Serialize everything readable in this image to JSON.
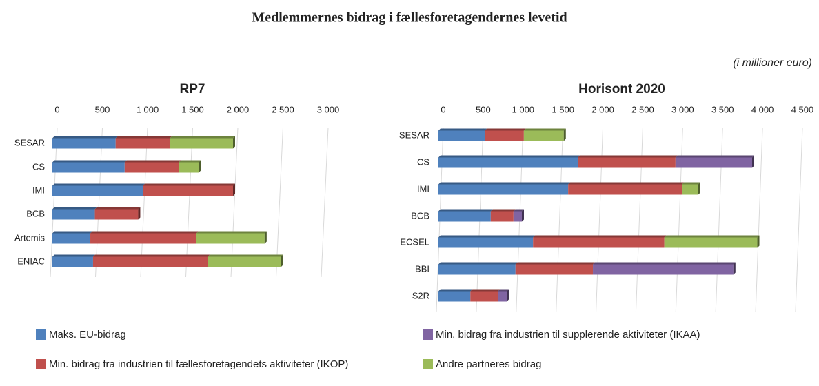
{
  "title": "Medlemmernes bidrag i fællesforetagendernes levetid",
  "subtitle": "(i millioner euro)",
  "chart_data": [
    {
      "type": "bar",
      "orientation": "horizontal",
      "title": "RP7",
      "categories": [
        "SESAR",
        "CS",
        "IMI",
        "BCB",
        "Artemis",
        "ENIAC"
      ],
      "series": [
        {
          "color": "#4f81bd",
          "values": [
            700,
            800,
            1000,
            470,
            420,
            450
          ]
        },
        {
          "color": "#c0504d",
          "values": [
            600,
            600,
            1000,
            480,
            1175,
            1270
          ]
        },
        {
          "color": "#9bbb59",
          "values": [
            700,
            220,
            0,
            0,
            755,
            810
          ]
        }
      ],
      "xlim": [
        0,
        3000
      ],
      "xticks": [
        0,
        500,
        {
          "value": 1000,
          "label": "1 000"
        },
        {
          "value": 1500,
          "label": "1 500"
        },
        {
          "value": 2000,
          "label": "2 000"
        },
        {
          "value": 2500,
          "label": "2 500"
        },
        {
          "value": 3000,
          "label": "3 000"
        }
      ],
      "grid": true
    },
    {
      "type": "bar",
      "orientation": "horizontal",
      "title": "Horisont 2020",
      "categories": [
        "SESAR",
        "CS",
        "IMI",
        "BCB",
        "ECSEL",
        "BBI",
        "S2R"
      ],
      "series": [
        {
          "name": "Maks. EU-bidrag",
          "color": "#4f81bd",
          "values": [
            580,
            1745,
            1625,
            655,
            1185,
            965,
            400
          ]
        },
        {
          "name": "Min. bidrag fra industrien til fællesforetagendets aktiviteter (IKOP)",
          "color": "#c0504d",
          "values": [
            490,
            1225,
            1425,
            285,
            1645,
            970,
            345
          ]
        },
        {
          "name": "Min. bidrag fra industrien til supplerende aktiviteter (IKAA)",
          "color": "#8064a2",
          "values": [
            0,
            960,
            0,
            105,
            0,
            1760,
            110
          ]
        },
        {
          "name": "Andre partneres bidrag",
          "color": "#9bbb59",
          "values": [
            500,
            0,
            205,
            0,
            1165,
            0,
            0
          ]
        }
      ],
      "xlim": [
        0,
        4500
      ],
      "xticks": [
        0,
        500,
        {
          "value": 1000,
          "label": "1 000"
        },
        {
          "value": 1500,
          "label": "1 500"
        },
        {
          "value": 2000,
          "label": "2 000"
        },
        {
          "value": 2500,
          "label": "2 500"
        },
        {
          "value": 3000,
          "label": "3 000"
        },
        {
          "value": 3500,
          "label": "3 500"
        },
        {
          "value": 4000,
          "label": "4 000"
        },
        {
          "value": 4500,
          "label": "4 500"
        }
      ],
      "grid": true
    }
  ]
}
